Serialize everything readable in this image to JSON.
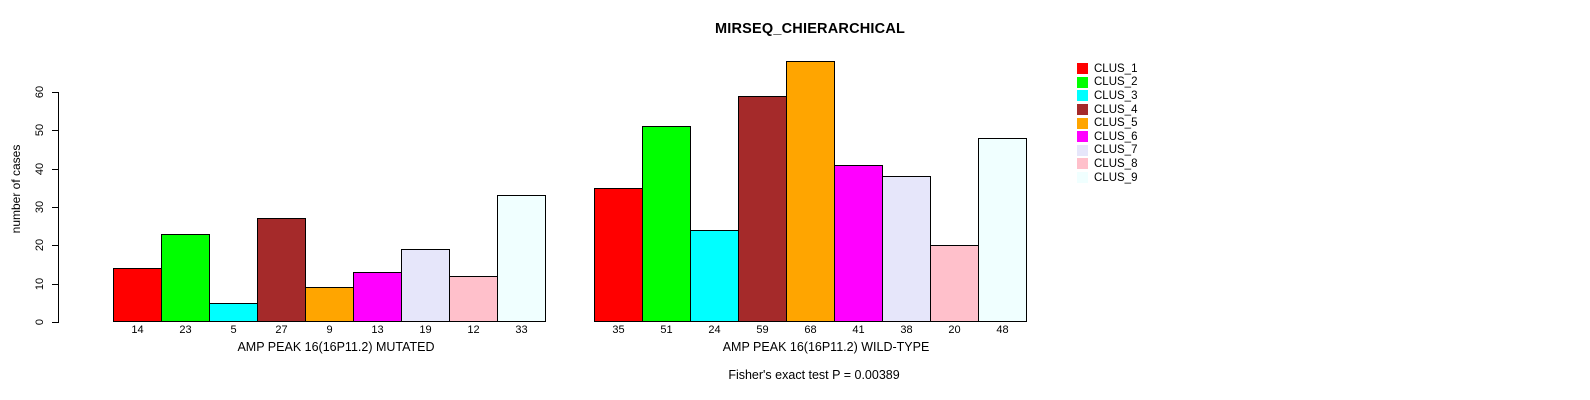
{
  "chart_data": {
    "type": "bar",
    "title": "MIRSEQ_CHIERARCHICAL",
    "ylabel": "number of cases",
    "ylim": [
      0,
      60
    ],
    "yticks": [
      0,
      10,
      20,
      30,
      40,
      50,
      60
    ],
    "grid": false,
    "legend_position": "right-outside",
    "categories": [
      "CLUS_1",
      "CLUS_2",
      "CLUS_3",
      "CLUS_4",
      "CLUS_5",
      "CLUS_6",
      "CLUS_7",
      "CLUS_8",
      "CLUS_9"
    ],
    "colors": [
      "#ff0000",
      "#00ff00",
      "#00ffff",
      "#a52a2a",
      "#ffa500",
      "#ff00ff",
      "#e6e6fa",
      "#ffc0cb",
      "#f0ffff"
    ],
    "bar_border_color": "#000000",
    "series": [
      {
        "name": "AMP PEAK 16(16P11.2) MUTATED",
        "values": [
          14,
          23,
          5,
          27,
          9,
          13,
          19,
          12,
          33
        ]
      },
      {
        "name": "AMP PEAK 16(16P11.2) WILD-TYPE",
        "values": [
          35,
          51,
          24,
          59,
          68,
          41,
          38,
          20,
          48
        ]
      }
    ],
    "value_labels_shown": true,
    "note": "Fisher's exact test P = 0.00389"
  }
}
